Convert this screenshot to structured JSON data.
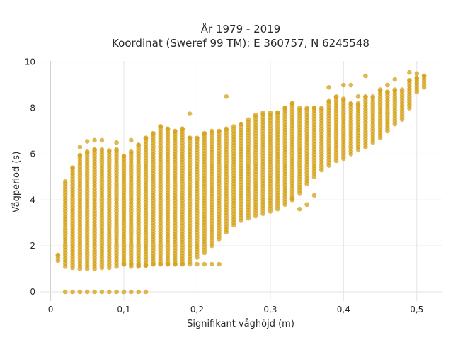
{
  "chart_data": {
    "type": "scatter",
    "title": "År 1979 - 2019",
    "subtitle": "Koordinat (Sweref 99 TM): E 360757, N 6245548",
    "xlabel": "Signifikant våghöjd (m)",
    "ylabel": "Vågperiod (s)",
    "xlim": [
      -0.015,
      0.535
    ],
    "ylim": [
      -0.4,
      10.05
    ],
    "x_ticks": [
      0,
      0.1,
      0.2,
      0.3,
      0.4,
      0.5
    ],
    "x_tick_labels": [
      "0",
      "0,1",
      "0,2",
      "0,3",
      "0,4",
      "0,5"
    ],
    "y_ticks": [
      0,
      2,
      4,
      6,
      8,
      10
    ],
    "y_tick_labels": [
      "0",
      "2",
      "4",
      "6",
      "8",
      "10"
    ],
    "grid": true,
    "legend": "none",
    "marker_color": "#d4a017",
    "marker_opacity": 0.75,
    "columns": [
      {
        "x": 0.01,
        "ymin": 1.35,
        "ymax": 1.6,
        "outliers": [],
        "zero": false
      },
      {
        "x": 0.02,
        "ymin": 1.1,
        "ymax": 4.8,
        "outliers": [],
        "zero": true
      },
      {
        "x": 0.03,
        "ymin": 1.05,
        "ymax": 5.4,
        "outliers": [],
        "zero": true
      },
      {
        "x": 0.04,
        "ymin": 1.0,
        "ymax": 5.95,
        "outliers": [
          6.3
        ],
        "zero": true
      },
      {
        "x": 0.05,
        "ymin": 1.0,
        "ymax": 6.1,
        "outliers": [
          6.55
        ],
        "zero": true
      },
      {
        "x": 0.06,
        "ymin": 1.0,
        "ymax": 6.2,
        "outliers": [
          6.6
        ],
        "zero": true
      },
      {
        "x": 0.07,
        "ymin": 1.05,
        "ymax": 6.2,
        "outliers": [
          6.6
        ],
        "zero": true
      },
      {
        "x": 0.08,
        "ymin": 1.05,
        "ymax": 6.15,
        "outliers": [],
        "zero": true
      },
      {
        "x": 0.09,
        "ymin": 1.1,
        "ymax": 6.2,
        "outliers": [
          6.5
        ],
        "zero": true
      },
      {
        "x": 0.1,
        "ymin": 1.2,
        "ymax": 5.9,
        "outliers": [],
        "zero": true
      },
      {
        "x": 0.11,
        "ymin": 1.1,
        "ymax": 6.1,
        "outliers": [
          6.6
        ],
        "zero": true
      },
      {
        "x": 0.12,
        "ymin": 1.1,
        "ymax": 6.4,
        "outliers": [],
        "zero": true
      },
      {
        "x": 0.13,
        "ymin": 1.15,
        "ymax": 6.7,
        "outliers": [],
        "zero": true
      },
      {
        "x": 0.14,
        "ymin": 1.2,
        "ymax": 6.9,
        "outliers": [],
        "zero": false
      },
      {
        "x": 0.15,
        "ymin": 1.2,
        "ymax": 7.2,
        "outliers": [],
        "zero": false
      },
      {
        "x": 0.16,
        "ymin": 1.2,
        "ymax": 7.1,
        "outliers": [],
        "zero": false
      },
      {
        "x": 0.17,
        "ymin": 1.2,
        "ymax": 7.0,
        "outliers": [],
        "zero": false
      },
      {
        "x": 0.18,
        "ymin": 1.2,
        "ymax": 7.1,
        "outliers": [],
        "zero": false
      },
      {
        "x": 0.19,
        "ymin": 1.3,
        "ymax": 6.7,
        "outliers": [
          7.75
        ],
        "zero": false
      },
      {
        "x": 0.2,
        "ymin": 1.5,
        "ymax": 6.7,
        "outliers": [],
        "zero": false
      },
      {
        "x": 0.21,
        "ymin": 1.7,
        "ymax": 6.9,
        "outliers": [],
        "zero": false
      },
      {
        "x": 0.22,
        "ymin": 2.0,
        "ymax": 7.0,
        "outliers": [],
        "zero": false
      },
      {
        "x": 0.23,
        "ymin": 2.3,
        "ymax": 7.0,
        "outliers": [],
        "zero": false
      },
      {
        "x": 0.24,
        "ymin": 2.6,
        "ymax": 7.1,
        "outliers": [
          8.5
        ],
        "zero": false
      },
      {
        "x": 0.25,
        "ymin": 2.9,
        "ymax": 7.2,
        "outliers": [],
        "zero": false
      },
      {
        "x": 0.26,
        "ymin": 3.1,
        "ymax": 7.3,
        "outliers": [],
        "zero": false
      },
      {
        "x": 0.27,
        "ymin": 3.2,
        "ymax": 7.5,
        "outliers": [],
        "zero": false
      },
      {
        "x": 0.28,
        "ymin": 3.3,
        "ymax": 7.7,
        "outliers": [],
        "zero": false
      },
      {
        "x": 0.29,
        "ymin": 3.4,
        "ymax": 7.8,
        "outliers": [],
        "zero": false
      },
      {
        "x": 0.3,
        "ymin": 3.5,
        "ymax": 7.8,
        "outliers": [],
        "zero": false
      },
      {
        "x": 0.31,
        "ymin": 3.6,
        "ymax": 7.8,
        "outliers": [],
        "zero": false
      },
      {
        "x": 0.32,
        "ymin": 3.8,
        "ymax": 8.0,
        "outliers": [],
        "zero": false
      },
      {
        "x": 0.33,
        "ymin": 4.0,
        "ymax": 8.2,
        "outliers": [],
        "zero": false
      },
      {
        "x": 0.34,
        "ymin": 4.3,
        "ymax": 8.0,
        "outliers": [],
        "zero": false
      },
      {
        "x": 0.35,
        "ymin": 4.7,
        "ymax": 8.0,
        "outliers": [],
        "zero": false
      },
      {
        "x": 0.36,
        "ymin": 5.0,
        "ymax": 8.0,
        "outliers": [],
        "zero": false
      },
      {
        "x": 0.37,
        "ymin": 5.3,
        "ymax": 8.0,
        "outliers": [],
        "zero": false
      },
      {
        "x": 0.38,
        "ymin": 5.5,
        "ymax": 8.3,
        "outliers": [
          8.9
        ],
        "zero": false
      },
      {
        "x": 0.39,
        "ymin": 5.7,
        "ymax": 8.5,
        "outliers": [],
        "zero": false
      },
      {
        "x": 0.4,
        "ymin": 5.8,
        "ymax": 8.4,
        "outliers": [
          9.0
        ],
        "zero": false
      },
      {
        "x": 0.41,
        "ymin": 6.0,
        "ymax": 8.2,
        "outliers": [],
        "zero": false
      },
      {
        "x": 0.42,
        "ymin": 6.2,
        "ymax": 8.2,
        "outliers": [],
        "zero": false
      },
      {
        "x": 0.43,
        "ymin": 6.3,
        "ymax": 8.5,
        "outliers": [
          9.4
        ],
        "zero": false
      },
      {
        "x": 0.44,
        "ymin": 6.5,
        "ymax": 8.5,
        "outliers": [],
        "zero": false
      },
      {
        "x": 0.45,
        "ymin": 6.7,
        "ymax": 8.8,
        "outliers": [],
        "zero": false
      },
      {
        "x": 0.46,
        "ymin": 7.0,
        "ymax": 8.7,
        "outliers": [],
        "zero": false
      },
      {
        "x": 0.47,
        "ymin": 7.3,
        "ymax": 8.8,
        "outliers": [
          9.25
        ],
        "zero": false
      },
      {
        "x": 0.48,
        "ymin": 7.5,
        "ymax": 8.8,
        "outliers": [],
        "zero": false
      },
      {
        "x": 0.49,
        "ymin": 8.0,
        "ymax": 9.2,
        "outliers": [
          9.55
        ],
        "zero": false
      },
      {
        "x": 0.5,
        "ymin": 8.7,
        "ymax": 9.3,
        "outliers": [
          9.5
        ],
        "zero": false
      },
      {
        "x": 0.51,
        "ymin": 8.9,
        "ymax": 9.4,
        "outliers": [],
        "zero": false
      }
    ],
    "extra_points": [
      {
        "x": 0.1,
        "y": 1.2
      },
      {
        "x": 0.11,
        "y": 1.2
      },
      {
        "x": 0.12,
        "y": 1.15
      },
      {
        "x": 0.13,
        "y": 1.15
      },
      {
        "x": 0.14,
        "y": 1.2
      },
      {
        "x": 0.15,
        "y": 1.2
      },
      {
        "x": 0.16,
        "y": 1.2
      },
      {
        "x": 0.17,
        "y": 1.2
      },
      {
        "x": 0.18,
        "y": 1.2
      },
      {
        "x": 0.19,
        "y": 1.2
      },
      {
        "x": 0.2,
        "y": 1.2
      },
      {
        "x": 0.21,
        "y": 1.2
      },
      {
        "x": 0.22,
        "y": 1.2
      },
      {
        "x": 0.23,
        "y": 1.2
      },
      {
        "x": 0.34,
        "y": 3.6
      },
      {
        "x": 0.35,
        "y": 3.8
      },
      {
        "x": 0.36,
        "y": 4.2
      },
      {
        "x": 0.33,
        "y": 4.05
      },
      {
        "x": 0.41,
        "y": 9.0
      },
      {
        "x": 0.42,
        "y": 8.5
      },
      {
        "x": 0.46,
        "y": 9.0
      }
    ]
  }
}
